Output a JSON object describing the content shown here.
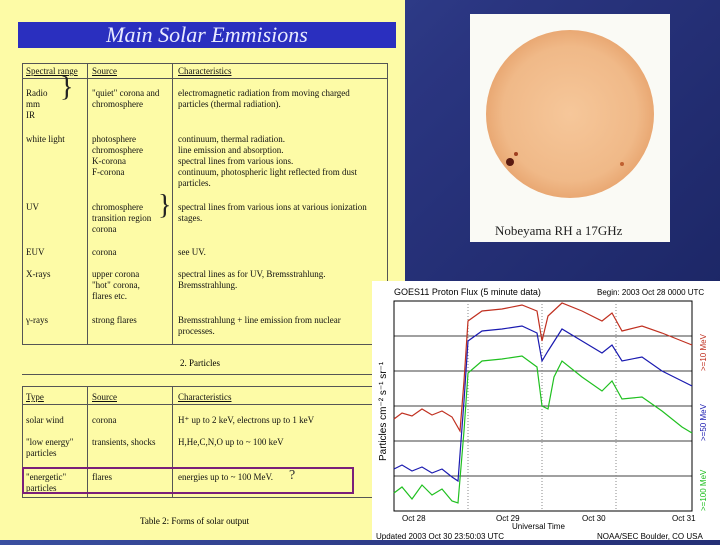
{
  "title": "Main Solar Emmisions",
  "table1": {
    "headers": [
      "Spectral range",
      "Source",
      "Characteristics"
    ],
    "rows": [
      {
        "range": "Radio\nmm\nIR",
        "source": "\"quiet\" corona and\nchromosphere",
        "chars": "electromagnetic radiation from moving charged\nparticles (thermal radiation)."
      },
      {
        "range": "white light",
        "source": "photosphere\nchromosphere\nK-corona\nF-corona",
        "chars": "continuum, thermal radiation.\nline emission and absorption.\nspectral lines from various ions.\ncontinuum, photospheric light reflected from dust\nparticles."
      },
      {
        "range": "UV",
        "source": "chromosphere\ntransition region\ncorona",
        "chars": "spectral lines from various ions at various ionization\nstages."
      },
      {
        "range": "EUV",
        "source": "corona",
        "chars": "see UV."
      },
      {
        "range": "X-rays",
        "source": "upper corona\n\"hot\" corona,\nflares etc.",
        "chars": "spectral lines as for UV, Bremsstrahlung.\nBremsstrahlung."
      },
      {
        "range": "γ-rays",
        "source": "strong flares",
        "chars": "Bremsstrahlung + line emission from nuclear\nprocesses."
      }
    ]
  },
  "section2": "2. Particles",
  "table2": {
    "headers": [
      "Type",
      "Source",
      "Characteristics"
    ],
    "rows": [
      {
        "type": "solar wind",
        "source": "corona",
        "chars": "H⁺ up to 2 keV, electrons up to 1 keV"
      },
      {
        "type": "\"low energy\"\nparticles",
        "source": "transients, shocks",
        "chars": "H,He,C,N,O up to ~ 100 keV"
      },
      {
        "type": "\"energetic\"\nparticles",
        "source": "flares",
        "chars": "energies up to ~ 100 MeV."
      }
    ]
  },
  "question_mark": "?",
  "caption": "Table 2: Forms of solar output",
  "sun_label": "Nobeyama RH a 17GHz",
  "goes": {
    "title": "GOES11 Proton Flux (5 minute data)",
    "begin": "Begin: 2003 Oct 28 0000 UTC",
    "ylabel": "Particles cm⁻² s⁻¹ sr⁻¹",
    "xticks": [
      "Oct 28",
      "Oct 29",
      "Oct 30",
      "Oct 31"
    ],
    "xlabel": "Universal Time",
    "updated": "Updated 2003 Oct 30 23:50:03 UTC",
    "credit": "NOAA/SEC Boulder, CO USA",
    "legend": [
      ">=10 MeV",
      ">=50 MeV",
      ">=100 MeV"
    ],
    "colors": {
      "red": "#c03020",
      "blue": "#1a1ab0",
      "green": "#20c020"
    }
  }
}
